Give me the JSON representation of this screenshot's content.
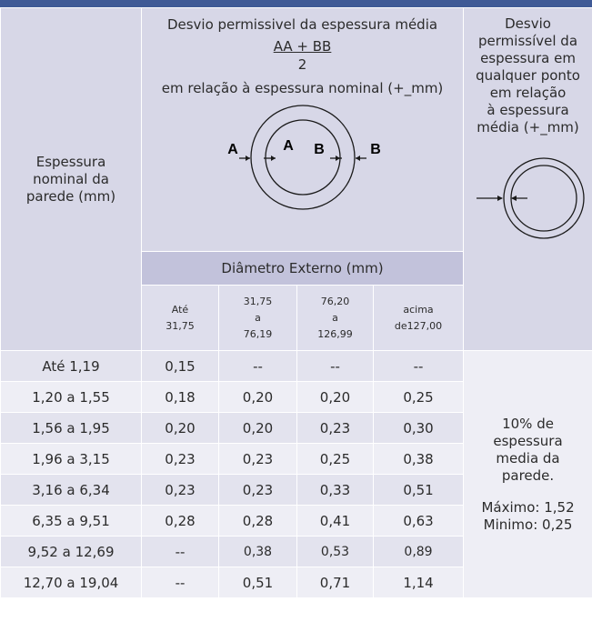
{
  "header": {
    "col_thickness": [
      "Espessura",
      "nominal da",
      "parede (mm)"
    ],
    "avg_title": "Desvio permissivel da espessura média",
    "formula_num": "AA + BB",
    "formula_den": "2",
    "avg_relation": "em relação à espessura nominal (+_mm)",
    "diagram_labels": {
      "a_outer": "A",
      "a_inner": "A",
      "b_inner": "B",
      "b_outer": "B"
    },
    "any_point": [
      "Desvio",
      "permissível da",
      "espessura em",
      "qualquer ponto",
      "em relação",
      "à espessura",
      "média (+_mm)"
    ],
    "diam_label": "Diâmetro Externo (mm)",
    "diam_ranges": [
      [
        "Até",
        "31,75"
      ],
      [
        "31,75",
        "a",
        "76,19"
      ],
      [
        "76,20",
        "a",
        "126,99"
      ],
      [
        "acima",
        "de127,00"
      ]
    ]
  },
  "rows": [
    {
      "thickness": "Até 1,19",
      "values": [
        "0,15",
        "--",
        "--",
        "--"
      ]
    },
    {
      "thickness": "1,20 a 1,55",
      "values": [
        "0,18",
        "0,20",
        "0,20",
        "0,25"
      ]
    },
    {
      "thickness": "1,56 a 1,95",
      "values": [
        "0,20",
        "0,20",
        "0,23",
        "0,30"
      ]
    },
    {
      "thickness": "1,96 a 3,15",
      "values": [
        "0,23",
        "0,23",
        "0,25",
        "0,38"
      ]
    },
    {
      "thickness": "3,16 a 6,34",
      "values": [
        "0,23",
        "0,23",
        "0,33",
        "0,51"
      ]
    },
    {
      "thickness": "6,35 a 9,51",
      "values": [
        "0,28",
        "0,28",
        "0,41",
        "0,63"
      ]
    },
    {
      "thickness": "9,52 a 12,69",
      "values": [
        "--",
        "0,38",
        "0,53",
        "0,89"
      ]
    },
    {
      "thickness": "12,70 a 19,04",
      "values": [
        "--",
        "0,51",
        "0,71",
        "1,14"
      ]
    }
  ],
  "note": {
    "lines": [
      "10% de",
      "espessura",
      "media da",
      "parede."
    ],
    "max": "Máximo: 1,52",
    "min": "Minimo: 0,25"
  },
  "colors": {
    "top_bar": "#3f5a96",
    "header_bg": "#d7d7e7",
    "band_bg": "#c2c2db"
  }
}
